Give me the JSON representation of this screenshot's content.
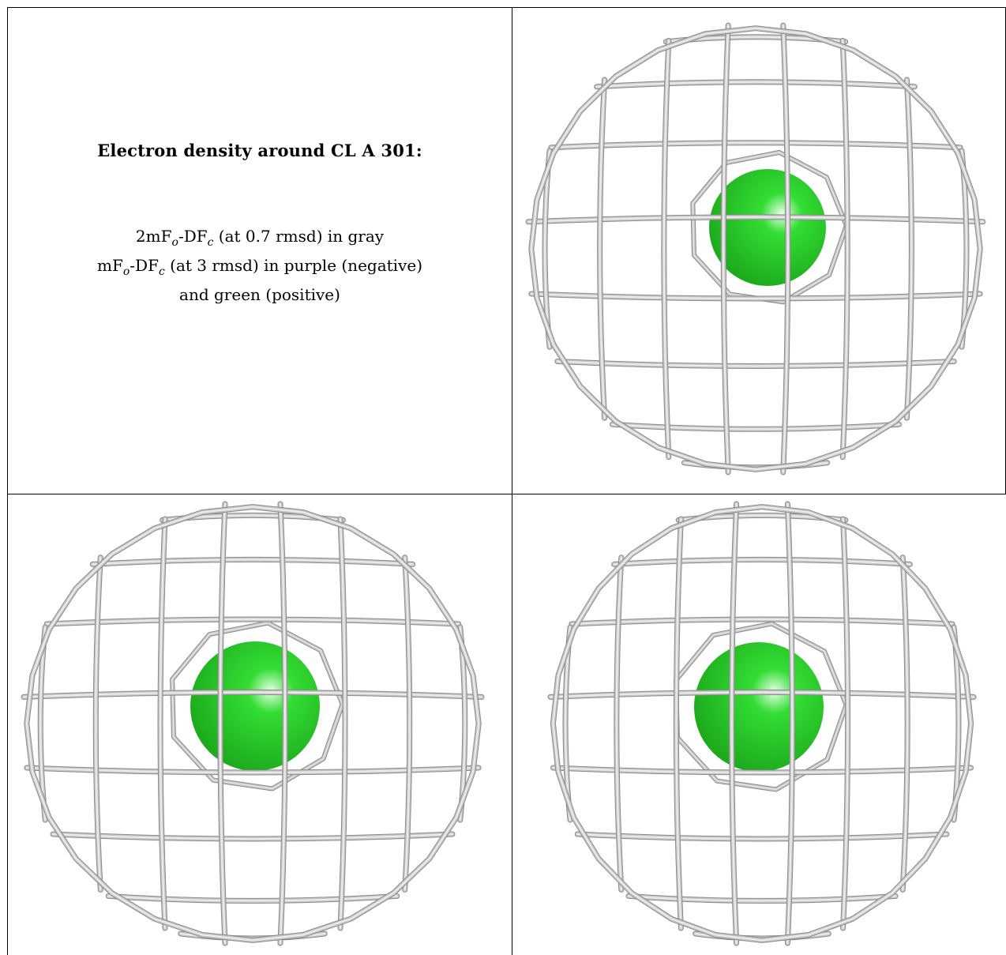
{
  "caption": {
    "title": "Electron density around CL A 301:",
    "line1": {
      "a": "2mF",
      "o": "o",
      "b": "-DF",
      "c": "c",
      "rest": " (at 0.7 rmsd) in gray"
    },
    "line2": {
      "a": "mF",
      "o": "o",
      "b": "-DF",
      "c": "c",
      "rest": " (at 3 rmsd) in purple (negative)"
    },
    "line3": "and green (positive)"
  },
  "colors": {
    "mesh": "#c8c8c8",
    "mesh_dark": "#8a8a8a",
    "atom": "#33dd33",
    "atom_dark": "#1ba51b",
    "border": "#000000"
  },
  "panels": [
    {
      "name": "view-top-right",
      "atom": "CL A 301"
    },
    {
      "name": "view-bottom-left",
      "atom": "CL A 301"
    },
    {
      "name": "view-bottom-right",
      "atom": "CL A 301"
    }
  ]
}
